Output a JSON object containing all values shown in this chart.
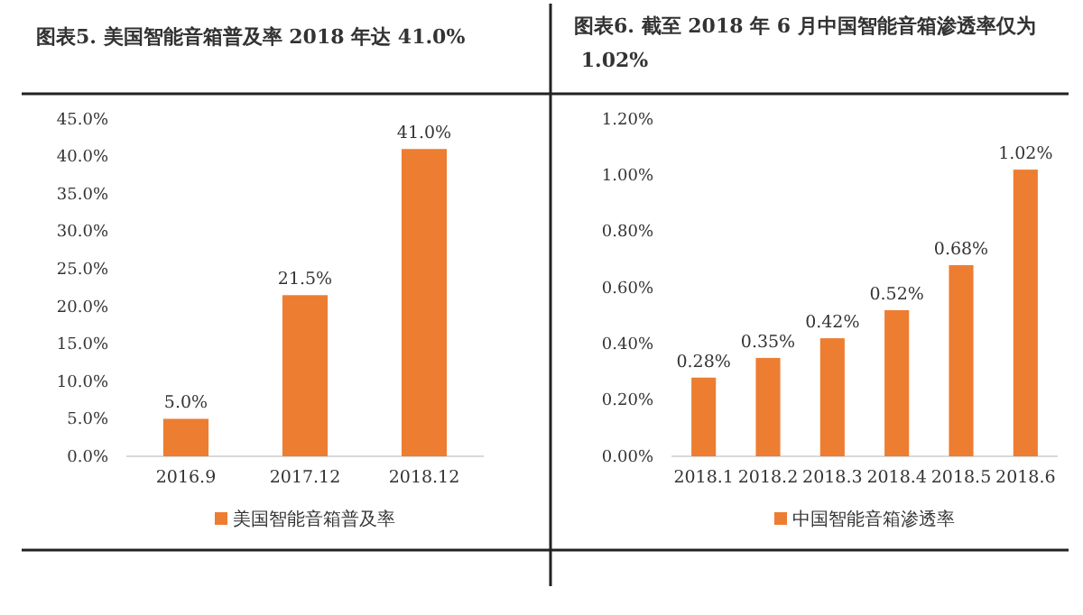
{
  "chart_data": [
    {
      "type": "bar",
      "title": "图表5.    美国智能音箱普及率 2018 年达 41.0%",
      "categories": [
        "2016.9",
        "2017.12",
        "2018.12"
      ],
      "series": [
        {
          "name": "美国智能音箱普及率",
          "color": "#ed7d31",
          "values": [
            5.0,
            21.5,
            41.0
          ],
          "value_labels": [
            "5.0%",
            "21.5%",
            "41.0%"
          ]
        }
      ],
      "ylim": [
        0,
        45
      ],
      "yticks": [
        {
          "value": 0,
          "label": "0.0%"
        },
        {
          "value": 5,
          "label": "5.0%"
        },
        {
          "value": 10,
          "label": "10.0%"
        },
        {
          "value": 15,
          "label": "15.0%"
        },
        {
          "value": 20,
          "label": "20.0%"
        },
        {
          "value": 25,
          "label": "25.0%"
        },
        {
          "value": 30,
          "label": "30.0%"
        },
        {
          "value": 35,
          "label": "35.0%"
        },
        {
          "value": 40,
          "label": "40.0%"
        },
        {
          "value": 45,
          "label": "45.0%"
        }
      ],
      "legend": "bottom"
    },
    {
      "type": "bar",
      "title": "图表6.    截至 2018 年 6 月中国智能音箱渗透率仅为 1.02%",
      "categories": [
        "2018.1",
        "2018.2",
        "2018.3",
        "2018.4",
        "2018.5",
        "2018.6"
      ],
      "series": [
        {
          "name": "中国智能音箱渗透率",
          "color": "#ed7d31",
          "values": [
            0.28,
            0.35,
            0.42,
            0.52,
            0.68,
            1.02
          ],
          "value_labels": [
            "0.28%",
            "0.35%",
            "0.42%",
            "0.52%",
            "0.68%",
            "1.02%"
          ]
        }
      ],
      "ylim": [
        0,
        1.2
      ],
      "yticks": [
        {
          "value": 0,
          "label": "0.00%"
        },
        {
          "value": 0.2,
          "label": "0.20%"
        },
        {
          "value": 0.4,
          "label": "0.40%"
        },
        {
          "value": 0.6,
          "label": "0.60%"
        },
        {
          "value": 0.8,
          "label": "0.80%"
        },
        {
          "value": 1.0,
          "label": "1.00%"
        },
        {
          "value": 1.2,
          "label": "1.20%"
        }
      ],
      "legend": "bottom"
    }
  ]
}
